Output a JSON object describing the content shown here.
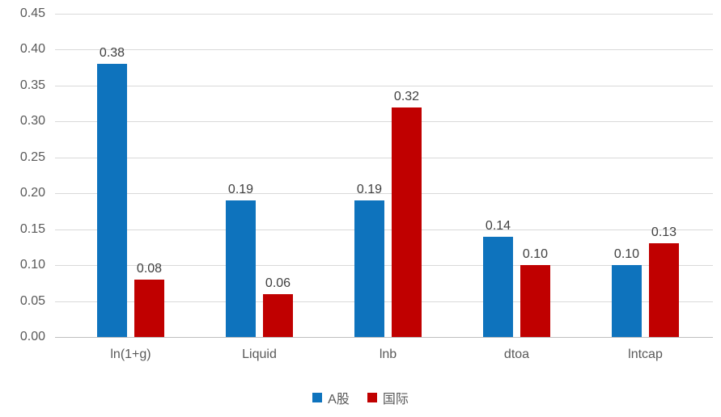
{
  "chart_data": {
    "type": "bar",
    "title": "",
    "categories": [
      "ln(1+g)",
      "Liquid",
      "lnb",
      "dtoa",
      "lntcap"
    ],
    "series": [
      {
        "name": "A股",
        "color": "#0e73bd",
        "values": [
          0.38,
          0.19,
          0.19,
          0.14,
          0.1
        ],
        "labels": [
          "0.38",
          "0.19",
          "0.19",
          "0.14",
          "0.10"
        ]
      },
      {
        "name": "国际",
        "color": "#c00000",
        "values": [
          0.08,
          0.06,
          0.32,
          0.1,
          0.13
        ],
        "labels": [
          "0.08",
          "0.06",
          "0.32",
          "0.10",
          "0.13"
        ]
      }
    ],
    "ylim": [
      0,
      0.45
    ],
    "ytick_step": 0.05,
    "yticks": [
      "0.00",
      "0.05",
      "0.10",
      "0.15",
      "0.20",
      "0.25",
      "0.30",
      "0.35",
      "0.40",
      "0.45"
    ],
    "grid": "horizontal",
    "legend_position": "bottom",
    "colors": {
      "grid": "#d9d9d9",
      "axis_line": "#bfbfbf",
      "tick_label": "#595959",
      "data_label": "#404040",
      "background": "#ffffff"
    }
  }
}
